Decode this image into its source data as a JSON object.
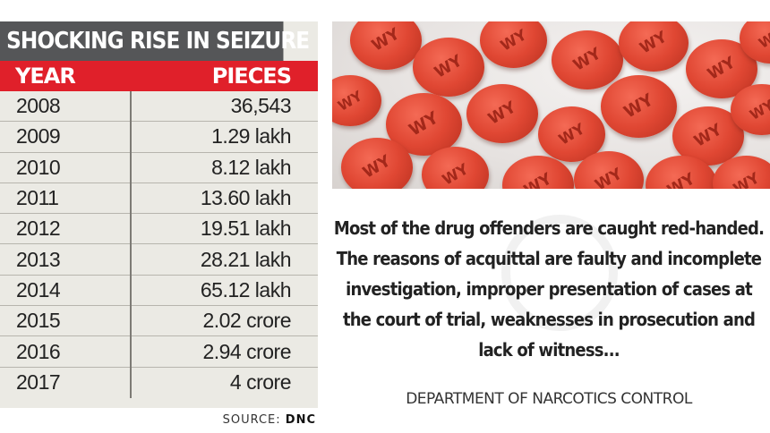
{
  "table": {
    "title": "SHOCKING RISE IN SEIZURE",
    "col_year": "YEAR",
    "col_pieces": "PIECES",
    "rows": [
      {
        "year": "2008",
        "pieces": "36,543"
      },
      {
        "year": "2009",
        "pieces": "1.29 lakh"
      },
      {
        "year": "2010",
        "pieces": "8.12 lakh"
      },
      {
        "year": "2011",
        "pieces": "13.60 lakh"
      },
      {
        "year": "2012",
        "pieces": "19.51 lakh"
      },
      {
        "year": "2013",
        "pieces": "28.21 lakh"
      },
      {
        "year": "2014",
        "pieces": "65.12 lakh"
      },
      {
        "year": "2015",
        "pieces": "2.02 crore"
      },
      {
        "year": "2016",
        "pieces": "2.94 crore"
      },
      {
        "year": "2017",
        "pieces": "4 crore"
      }
    ],
    "source_label": "SOURCE:",
    "source_value": "DNC"
  },
  "photo": {
    "pill_marking": "WY"
  },
  "quote": {
    "lines": [
      "Most of the drug offenders are caught red-handed.",
      "The reasons of acquittal are faulty and incomplete",
      "investigation, improper presentation of cases at",
      "the court of trial, weaknesses in prosecution and",
      "lack of witness..."
    ],
    "attribution": "DEPARTMENT OF NARCOTICS CONTROL"
  },
  "colors": {
    "title_bg": "#555658",
    "header_bg": "#e0202a",
    "table_bg": "#ebeae4",
    "pill": "#e04733"
  }
}
